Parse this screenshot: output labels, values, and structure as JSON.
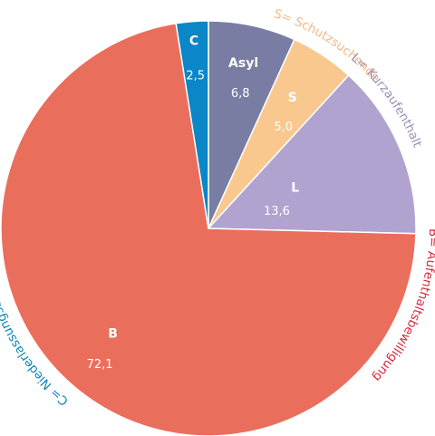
{
  "chart_data": {
    "type": "pie",
    "slices": [
      {
        "code": "Asyl",
        "value": "6,8",
        "number": 6.8,
        "color": "#7a7da3",
        "legend": ""
      },
      {
        "code": "S",
        "value": "5,0",
        "number": 5.0,
        "color": "#f8c88f",
        "legend": "S= Schutzsuchende",
        "legend_color": "#f3b887"
      },
      {
        "code": "L",
        "value": "13,6",
        "number": 13.6,
        "color": "#b1a3d0",
        "legend": "L= Kurzaufenthalt",
        "legend_color": "#9d8fb6"
      },
      {
        "code": "B",
        "value": "72,1",
        "number": 72.1,
        "color": "#ea6e5c",
        "legend": "B= Aufenthaltsbewilligung",
        "legend_color": "#d42a3b"
      },
      {
        "code": "C",
        "value": "2,5",
        "number": 2.5,
        "color": "#0b86c6",
        "legend": "C= Niederlassungsbewilligung",
        "legend_color": "#0b84b8"
      }
    ]
  }
}
